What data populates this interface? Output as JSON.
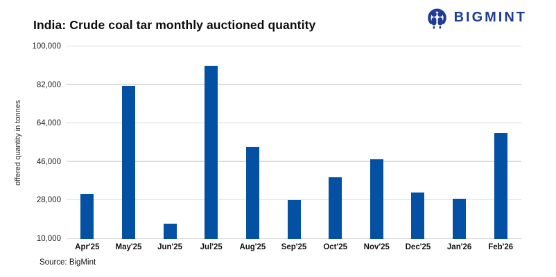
{
  "header": {
    "title": "India: Crude coal tar monthly auctioned quantity",
    "brand": {
      "name": "BIGMINT",
      "logo_icon": "bigmint-people-icon",
      "color": "#1e3c96"
    }
  },
  "chart_data": {
    "type": "bar",
    "title": "India: Crude coal tar monthly auctioned quantity",
    "categories": [
      "Apr'25",
      "May'25",
      "Jun'25",
      "Jul'25",
      "Aug'25",
      "Sep'25",
      "Oct'25",
      "Nov'25",
      "Dec'25",
      "Jan'26",
      "Feb'26"
    ],
    "values": [
      31000,
      81500,
      17200,
      91000,
      53200,
      28000,
      38800,
      47300,
      31700,
      28900,
      59600
    ],
    "xlabel": "",
    "ylabel": "offered quantity in tonnes",
    "ylim": [
      10000,
      100000
    ],
    "yticks": [
      10000,
      28000,
      46000,
      64000,
      82000,
      100000
    ],
    "ytick_labels": [
      "10,000",
      "28,000",
      "46,000",
      "64,000",
      "82,000",
      "100,000"
    ],
    "grid": true,
    "legend": false,
    "bar_color": "#0450a2",
    "gridline_color": "#dcdcdc"
  },
  "footer": {
    "source": "Source: BigMint"
  }
}
